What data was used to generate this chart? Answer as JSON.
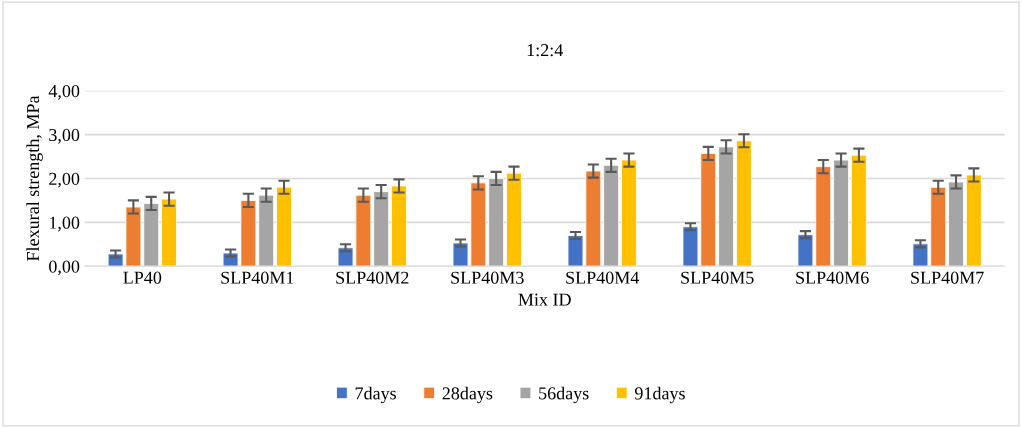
{
  "chart_data": {
    "type": "bar",
    "title": "1:2:4",
    "xlabel": "Mix ID",
    "ylabel": "Flexural strength, MPa",
    "categories": [
      "LP40",
      "SLP40M1",
      "SLP40M2",
      "SLP40M3",
      "SLP40M4",
      "SLP40M5",
      "SLP40M6",
      "SLP40M7"
    ],
    "series": [
      {
        "name": "7days",
        "color": "#4472c4",
        "values": [
          0.28,
          0.3,
          0.42,
          0.53,
          0.7,
          0.9,
          0.72,
          0.51
        ],
        "errors": [
          0.08,
          0.08,
          0.08,
          0.08,
          0.08,
          0.08,
          0.08,
          0.08
        ]
      },
      {
        "name": "28days",
        "color": "#ed7d31",
        "values": [
          1.35,
          1.5,
          1.62,
          1.9,
          2.17,
          2.57,
          2.27,
          1.8
        ],
        "errors": [
          0.15,
          0.15,
          0.15,
          0.15,
          0.15,
          0.15,
          0.15,
          0.15
        ]
      },
      {
        "name": "56days",
        "color": "#a5a5a5",
        "values": [
          1.43,
          1.62,
          1.7,
          2.0,
          2.3,
          2.72,
          2.42,
          1.92
        ],
        "errors": [
          0.15,
          0.15,
          0.15,
          0.15,
          0.15,
          0.15,
          0.15,
          0.15
        ]
      },
      {
        "name": "91days",
        "color": "#ffc000",
        "values": [
          1.53,
          1.8,
          1.83,
          2.12,
          2.42,
          2.86,
          2.53,
          2.08
        ],
        "errors": [
          0.15,
          0.15,
          0.15,
          0.15,
          0.15,
          0.15,
          0.15,
          0.15
        ]
      }
    ],
    "ylim": [
      0,
      4
    ],
    "yticks": [
      {
        "value": 0,
        "label": "0,00"
      },
      {
        "value": 1,
        "label": "1,00"
      },
      {
        "value": 2,
        "label": "2,00"
      },
      {
        "value": 3,
        "label": "3,00"
      },
      {
        "value": 4,
        "label": "4,00"
      }
    ],
    "grid": "y",
    "legend": "bottom"
  }
}
